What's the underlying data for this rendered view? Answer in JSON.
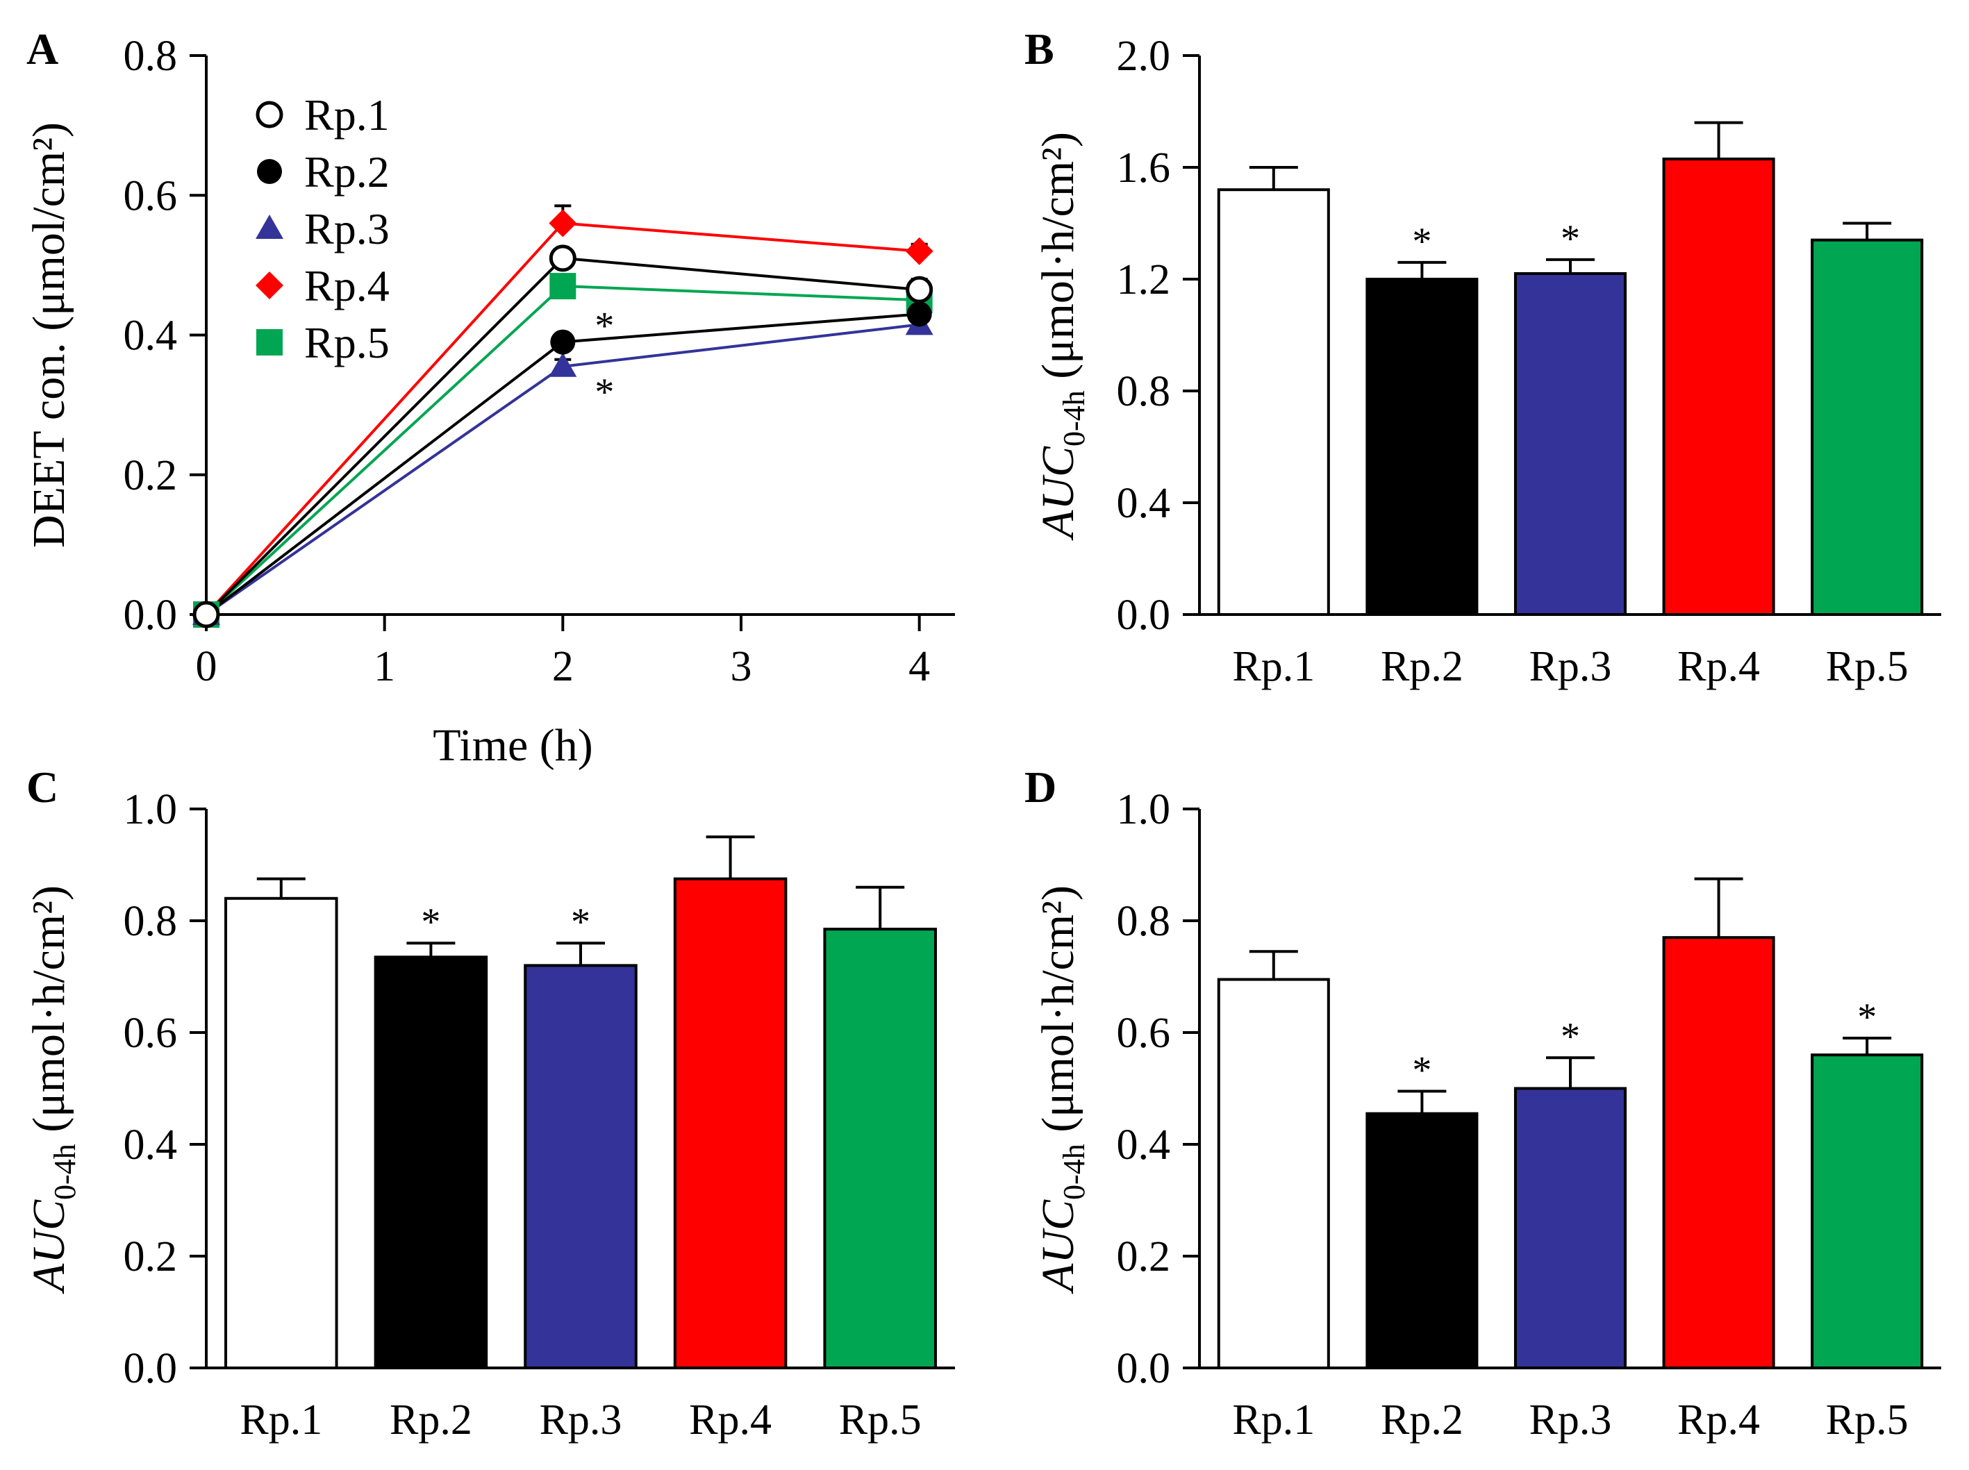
{
  "chart_data": [
    {
      "panel": "A",
      "type": "line",
      "xlabel": "Time (h)",
      "ylabel": "DEET con. (μmol/cm²)",
      "x_ticks": [
        "0",
        "1",
        "2",
        "3",
        "4"
      ],
      "y_ticks": [
        "0.0",
        "0.2",
        "0.4",
        "0.6",
        "0.8"
      ],
      "xlim": [
        0,
        4.2
      ],
      "ylim": [
        0,
        0.8
      ],
      "x": [
        0,
        2,
        4
      ],
      "legend_position": "top-left",
      "series": [
        {
          "name": "Rp.1",
          "marker": "circle-open",
          "color": "#000000",
          "values": [
            0,
            0.51,
            0.465
          ],
          "errors": [
            0,
            0.01,
            0.015
          ],
          "sig": [
            false,
            false,
            false
          ]
        },
        {
          "name": "Rp.2",
          "marker": "circle",
          "color": "#000000",
          "values": [
            0,
            0.39,
            0.43
          ],
          "errors": [
            0,
            0.01,
            0.01
          ],
          "sig": [
            false,
            true,
            false
          ]
        },
        {
          "name": "Rp.3",
          "marker": "triangle",
          "color": "#333399",
          "values": [
            0,
            0.355,
            0.415
          ],
          "errors": [
            0,
            0.01,
            0.01
          ],
          "sig": [
            false,
            true,
            false
          ]
        },
        {
          "name": "Rp.4",
          "marker": "diamond",
          "color": "#ff0000",
          "values": [
            0,
            0.56,
            0.52
          ],
          "errors": [
            0,
            0.025,
            0.01
          ],
          "sig": [
            false,
            false,
            false
          ]
        },
        {
          "name": "Rp.5",
          "marker": "square",
          "color": "#00a651",
          "values": [
            0,
            0.47,
            0.45
          ],
          "errors": [
            0,
            0.01,
            0.01
          ],
          "sig": [
            false,
            false,
            false
          ]
        }
      ]
    },
    {
      "panel": "B",
      "type": "bar",
      "ylabel_main": "AUC",
      "ylabel_sub": "0-4h",
      "ylabel_unit": " (μmol·h/cm²)",
      "categories": [
        "Rp.1",
        "Rp.2",
        "Rp.3",
        "Rp.4",
        "Rp.5"
      ],
      "colors": [
        "#ffffff",
        "#000000",
        "#333399",
        "#ff0000",
        "#00a651"
      ],
      "values": [
        1.52,
        1.2,
        1.22,
        1.63,
        1.34
      ],
      "errors": [
        0.08,
        0.06,
        0.05,
        0.13,
        0.06
      ],
      "sig": [
        false,
        true,
        true,
        false,
        false
      ],
      "y_ticks": [
        "0.0",
        "0.4",
        "0.8",
        "1.2",
        "1.6",
        "2.0"
      ],
      "ylim": [
        0,
        2.0
      ]
    },
    {
      "panel": "C",
      "type": "bar",
      "ylabel_main": "AUC",
      "ylabel_sub": "0-4h",
      "ylabel_unit": " (μmol·h/cm²)",
      "categories": [
        "Rp.1",
        "Rp.2",
        "Rp.3",
        "Rp.4",
        "Rp.5"
      ],
      "colors": [
        "#ffffff",
        "#000000",
        "#333399",
        "#ff0000",
        "#00a651"
      ],
      "values": [
        0.84,
        0.735,
        0.72,
        0.875,
        0.785
      ],
      "errors": [
        0.035,
        0.025,
        0.04,
        0.075,
        0.075
      ],
      "sig": [
        false,
        true,
        true,
        false,
        false
      ],
      "y_ticks": [
        "0.0",
        "0.2",
        "0.4",
        "0.6",
        "0.8",
        "1.0"
      ],
      "ylim": [
        0,
        1.0
      ]
    },
    {
      "panel": "D",
      "type": "bar",
      "ylabel_main": "AUC",
      "ylabel_sub": "0-4h",
      "ylabel_unit": " (μmol·h/cm²)",
      "categories": [
        "Rp.1",
        "Rp.2",
        "Rp.3",
        "Rp.4",
        "Rp.5"
      ],
      "colors": [
        "#ffffff",
        "#000000",
        "#333399",
        "#ff0000",
        "#00a651"
      ],
      "values": [
        0.695,
        0.455,
        0.5,
        0.77,
        0.56
      ],
      "errors": [
        0.05,
        0.04,
        0.055,
        0.105,
        0.03
      ],
      "sig": [
        false,
        true,
        true,
        false,
        true
      ],
      "y_ticks": [
        "0.0",
        "0.2",
        "0.4",
        "0.6",
        "0.8",
        "1.0"
      ],
      "ylim": [
        0,
        1.0
      ]
    }
  ],
  "significance_symbol": "*"
}
